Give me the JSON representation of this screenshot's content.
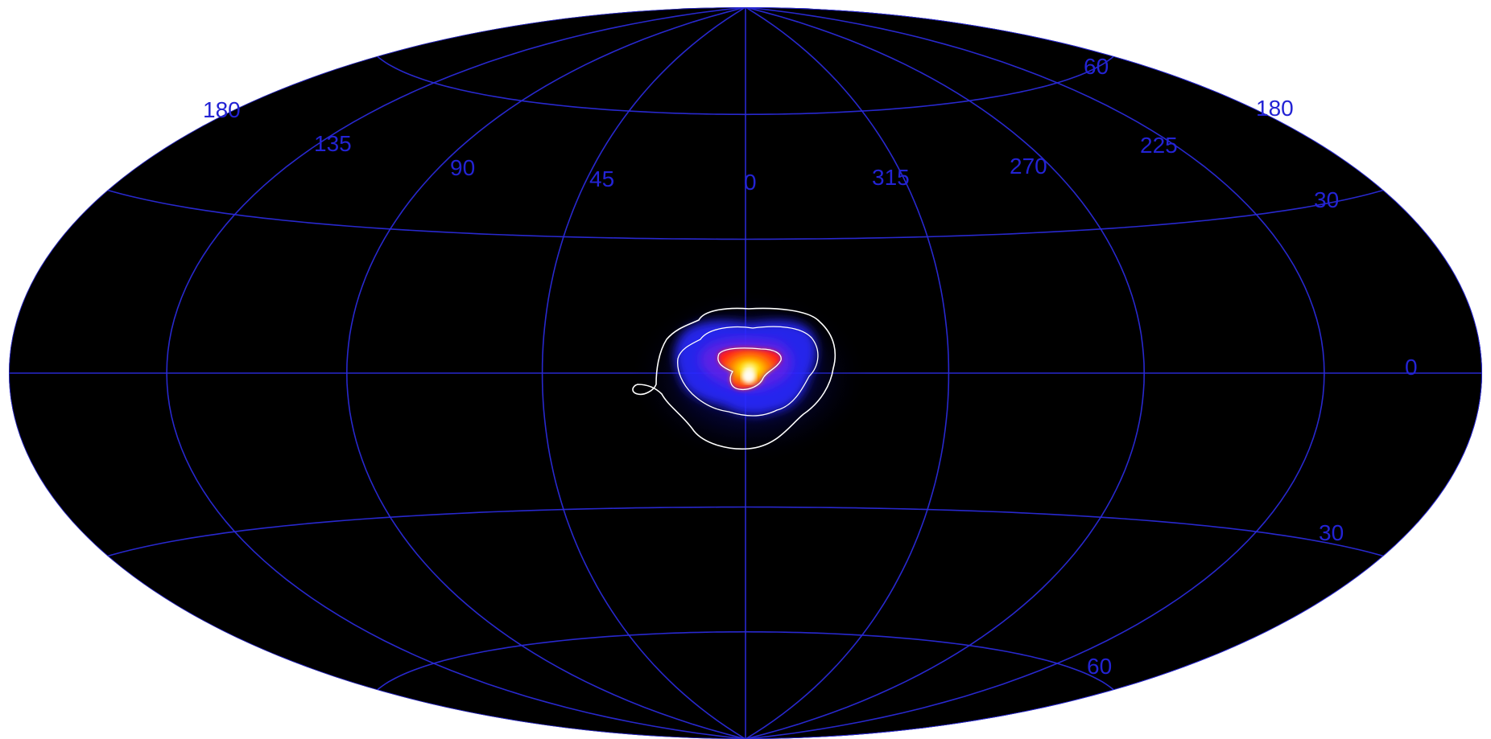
{
  "map": {
    "projection": "Hammer-Aitoff all-sky",
    "background_color": "#000000",
    "grid_color": "#2a2ad8",
    "label_color": "#2323d4",
    "contour_color": "#ffffff",
    "colormap": [
      "#000000",
      "#1010a0",
      "#2a2aff",
      "#8a1ad8",
      "#ff2020",
      "#ff8a00",
      "#ffe000",
      "#ffffff"
    ],
    "longitude_labels": [
      {
        "text": "180",
        "side": "left"
      },
      {
        "text": "135"
      },
      {
        "text": "90"
      },
      {
        "text": "45"
      },
      {
        "text": "0"
      },
      {
        "text": "315"
      },
      {
        "text": "270"
      },
      {
        "text": "225"
      },
      {
        "text": "180",
        "side": "right"
      }
    ],
    "latitude_labels": [
      {
        "text": "60",
        "hemisphere": "north"
      },
      {
        "text": "30",
        "hemisphere": "north"
      },
      {
        "text": "0",
        "hemisphere": "equator"
      },
      {
        "text": "30",
        "hemisphere": "south"
      },
      {
        "text": "60",
        "hemisphere": "south"
      }
    ],
    "meridians_deg": [
      -180,
      -135,
      -90,
      -45,
      0,
      45,
      90,
      135,
      180
    ],
    "parallels_deg": [
      -60,
      -30,
      0,
      30,
      60
    ],
    "emission_peak": {
      "lon_deg": 0,
      "lat_deg": 0
    }
  }
}
